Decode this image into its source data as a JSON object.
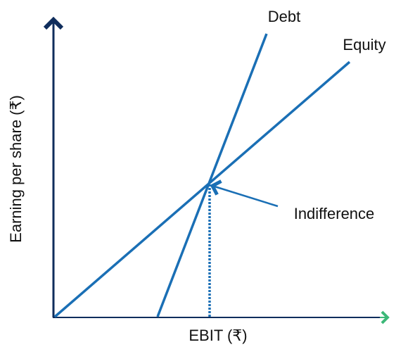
{
  "axes": {
    "x_label": "EBIT (₹)",
    "y_label": "Earning per share (₹)"
  },
  "lines": [
    {
      "label": "Debt"
    },
    {
      "label": "Equity"
    }
  ],
  "annotation": "Indifference"
}
